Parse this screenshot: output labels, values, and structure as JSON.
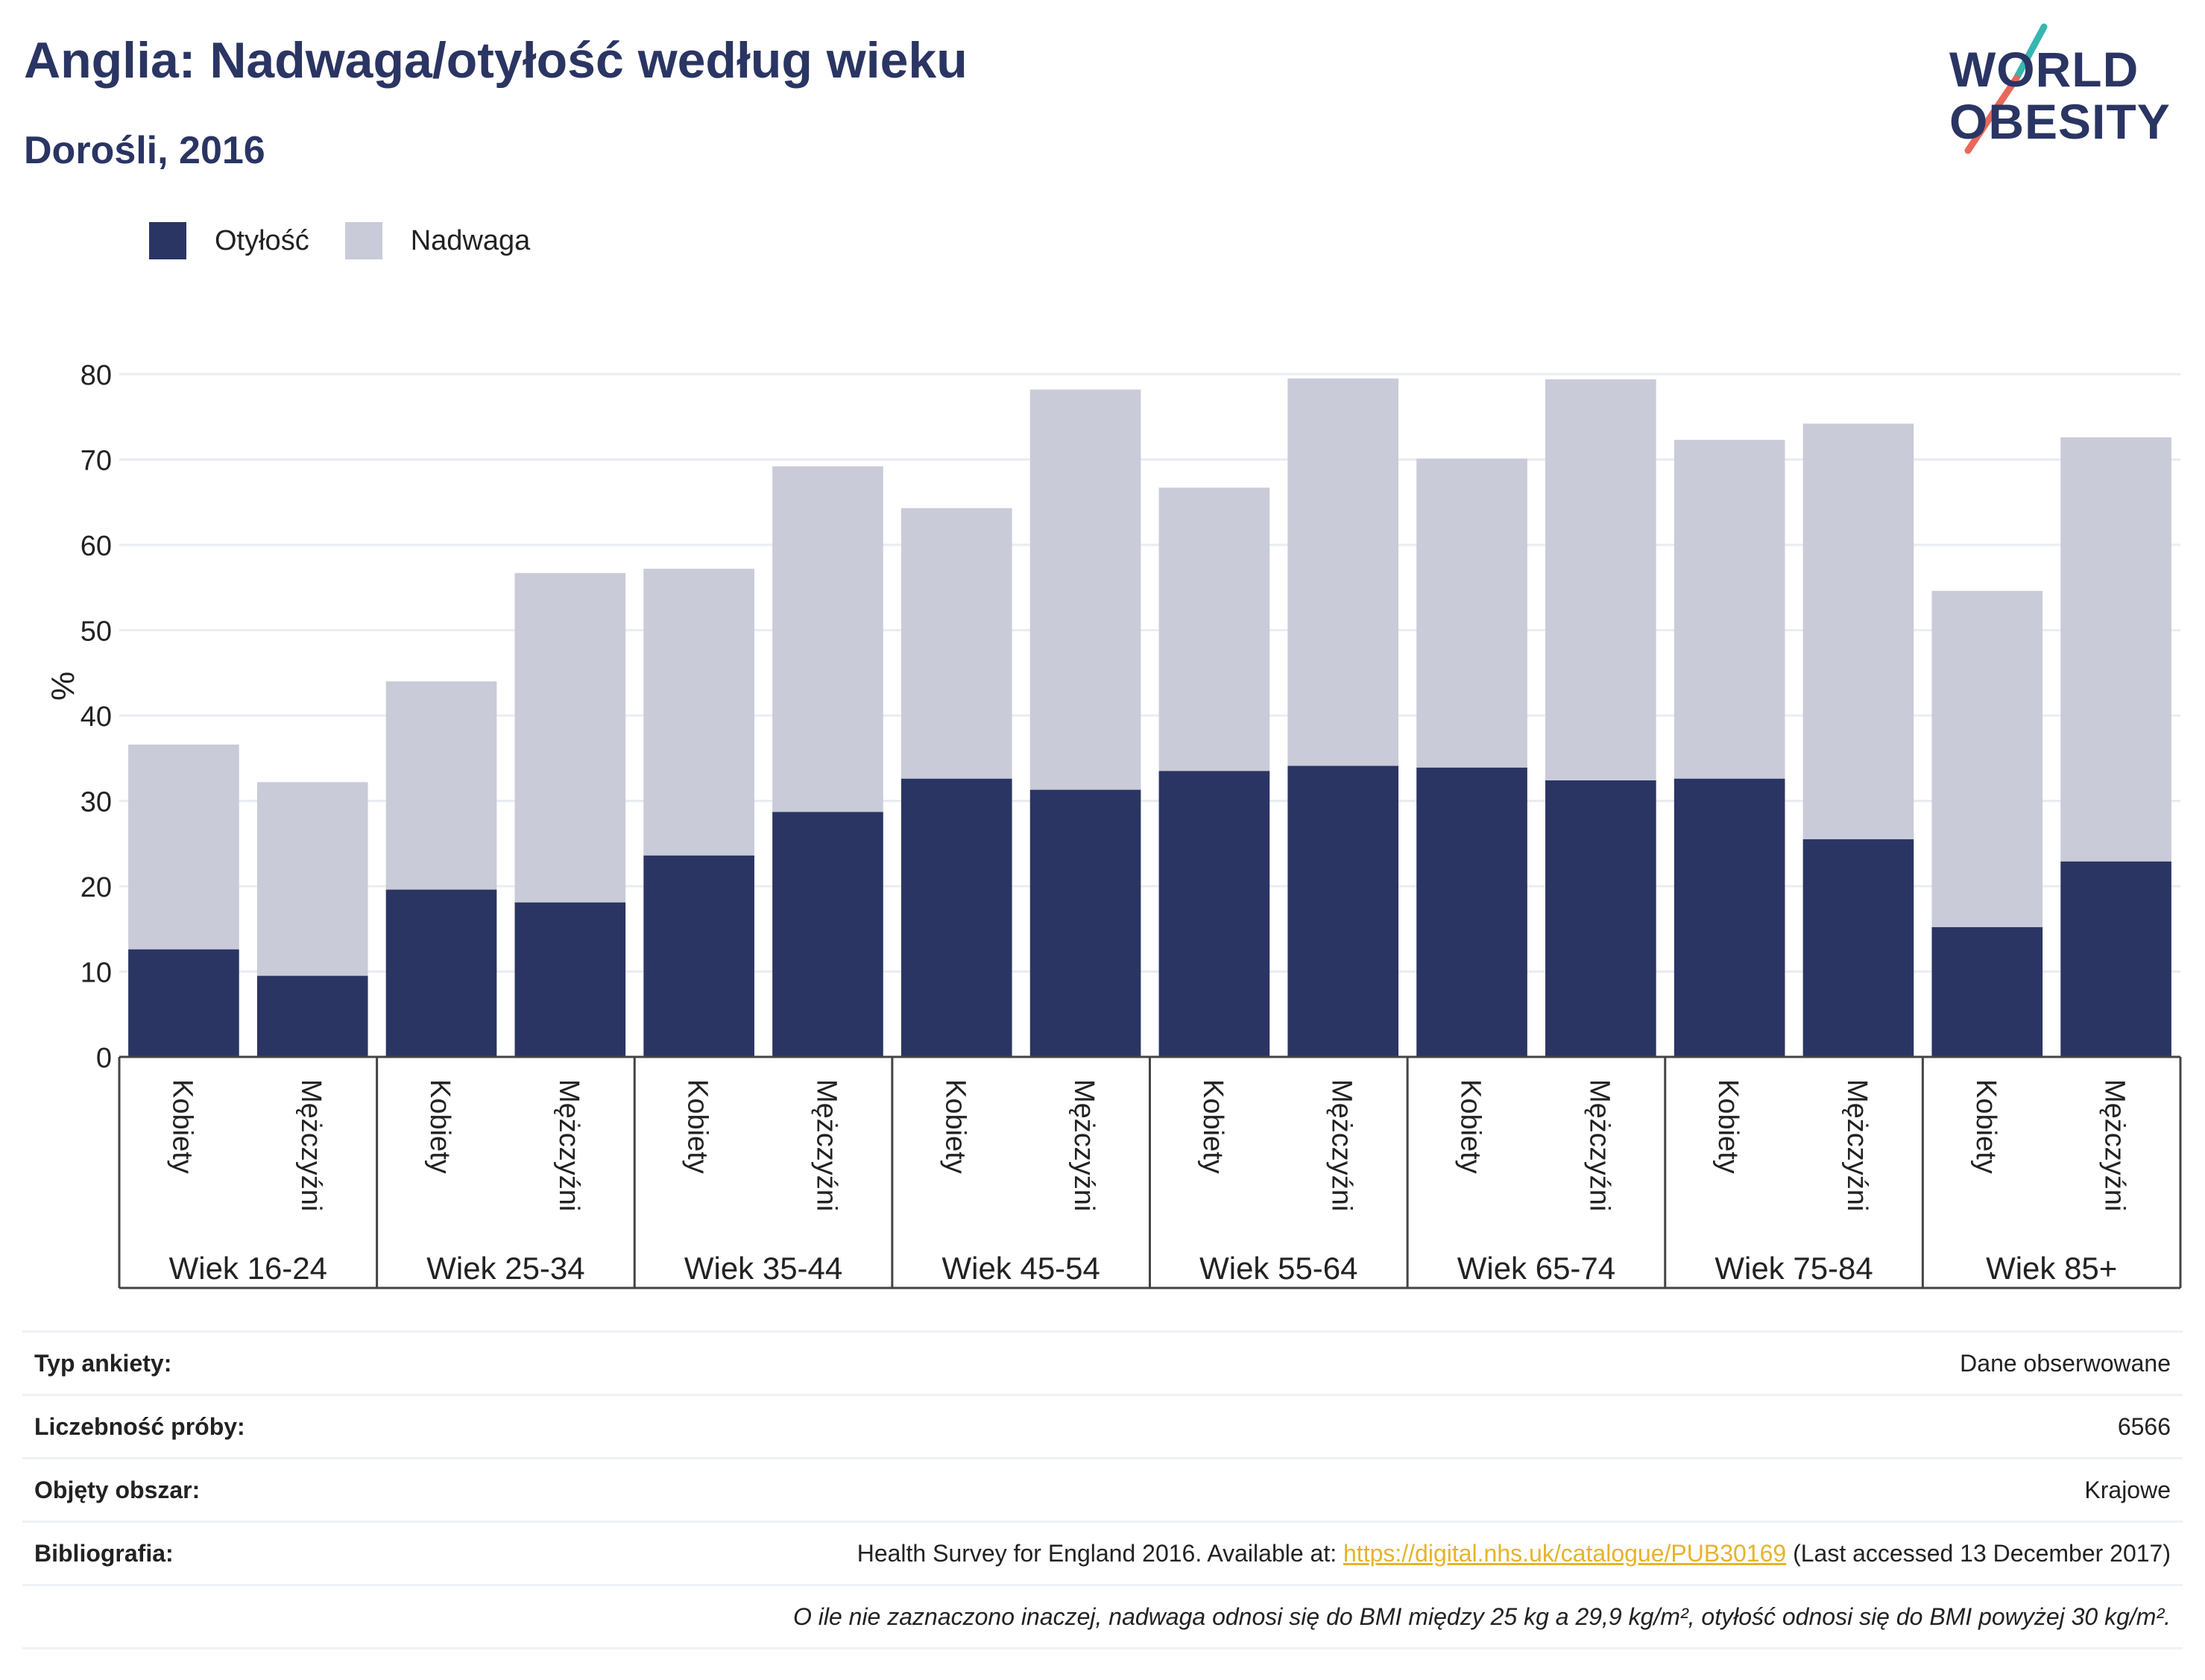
{
  "header": {
    "title": "Anglia: Nadwaga/otyłość według wieku",
    "subtitle": "Dorośli, 2016"
  },
  "logo": {
    "line1": "WORLD",
    "line2": "OBESITY"
  },
  "colors": {
    "obesity": "#2a3563",
    "overweight": "#c9cbd8",
    "accent_teal": "#37b6b0",
    "accent_red": "#e8685a",
    "link": "#e6b32b"
  },
  "legend": [
    {
      "label": "Otyłość",
      "color": "#2a3563"
    },
    {
      "label": "Nadwaga",
      "color": "#c9cbd8"
    }
  ],
  "chart_data": {
    "type": "bar",
    "stacked": true,
    "ylabel": "%",
    "ylim": [
      0,
      80
    ],
    "yticks": [
      0,
      10,
      20,
      30,
      40,
      50,
      60,
      70,
      80
    ],
    "groups": [
      "Wiek 16-24",
      "Wiek 25-34",
      "Wiek 35-44",
      "Wiek 45-54",
      "Wiek 55-64",
      "Wiek 65-74",
      "Wiek 75-84",
      "Wiek 85+"
    ],
    "subcategories": [
      "Kobiety",
      "Mężczyźni"
    ],
    "categories": [
      "Wiek 16-24 Kobiety",
      "Wiek 16-24 Mężczyźni",
      "Wiek 25-34 Kobiety",
      "Wiek 25-34 Mężczyźni",
      "Wiek 35-44 Kobiety",
      "Wiek 35-44 Mężczyźni",
      "Wiek 45-54 Kobiety",
      "Wiek 45-54 Mężczyźni",
      "Wiek 55-64 Kobiety",
      "Wiek 55-64 Mężczyźni",
      "Wiek 65-74 Kobiety",
      "Wiek 65-74 Mężczyźni",
      "Wiek 75-84 Kobiety",
      "Wiek 75-84 Mężczyźni",
      "Wiek 85+ Kobiety",
      "Wiek 85+ Mężczyźni"
    ],
    "series": [
      {
        "name": "Otyłość",
        "values": [
          12.6,
          9.5,
          19.6,
          18.1,
          23.6,
          28.7,
          32.6,
          31.3,
          33.5,
          34.1,
          33.9,
          32.4,
          32.6,
          25.5,
          15.2,
          22.9
        ]
      },
      {
        "name": "Nadwaga",
        "values": [
          24.0,
          22.7,
          24.4,
          38.6,
          33.6,
          40.5,
          31.7,
          46.9,
          33.2,
          45.4,
          36.2,
          47.0,
          39.7,
          48.7,
          39.4,
          49.7
        ]
      }
    ],
    "grid": true,
    "legend_position": "top-left"
  },
  "info": [
    {
      "key": "Typ ankiety:",
      "value": "Dane obserwowane"
    },
    {
      "key": "Liczebność próby:",
      "value": "6566"
    },
    {
      "key": "Objęty obszar:",
      "value": "Krajowe"
    },
    {
      "key": "Bibliografia:",
      "value_prefix": "Health Survey for England 2016. Available at: ",
      "link": "https://digital.nhs.uk/catalogue/PUB30169",
      "value_suffix": " (Last accessed 13 December 2017)"
    }
  ],
  "note": "O ile nie zaznaczono inaczej, nadwaga odnosi się do BMI między 25 kg a 29,9 kg/m², otyłość odnosi się do BMI powyżej 30 kg/m²."
}
